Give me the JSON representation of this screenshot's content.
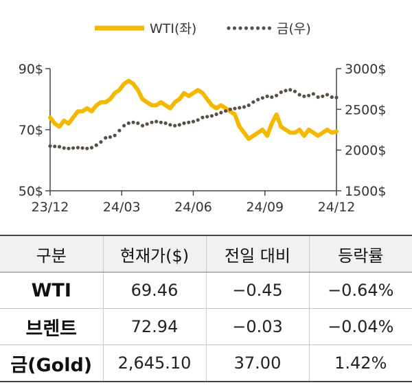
{
  "chart_data": {
    "type": "line",
    "x_ticks": [
      "23/12",
      "24/03",
      "24/06",
      "24/09",
      "24/12"
    ],
    "y_left": {
      "range": [
        50,
        90
      ],
      "ticks": [
        "90$",
        "70$",
        "50$"
      ]
    },
    "y_right": {
      "range": [
        1500,
        3000
      ],
      "ticks": [
        "3000$",
        "2500$",
        "2000$",
        "1500$"
      ]
    },
    "legend": {
      "position": "top"
    },
    "series": [
      {
        "name": "WTI(좌)",
        "axis": "left",
        "color": "#f5b800",
        "style": "solid",
        "values": [
          74,
          72,
          71,
          73,
          72,
          74,
          76,
          76,
          77,
          76,
          78,
          79,
          79,
          80,
          82,
          83,
          85,
          86,
          85,
          83,
          80,
          79,
          78,
          78,
          79,
          78,
          77,
          79,
          80,
          82,
          81,
          82,
          83,
          82,
          80,
          78,
          77,
          78,
          77,
          76,
          75,
          71,
          69,
          67,
          68,
          69,
          70,
          68,
          72,
          75,
          71,
          70,
          69,
          69,
          70,
          68,
          70,
          69,
          68,
          69,
          70,
          69,
          69.46
        ]
      },
      {
        "name": "금(우)",
        "axis": "right",
        "color": "#5a4f44",
        "style": "dotted",
        "values": [
          2050,
          2045,
          2040,
          2025,
          2020,
          2025,
          2030,
          2025,
          2020,
          2030,
          2060,
          2100,
          2150,
          2160,
          2180,
          2240,
          2300,
          2330,
          2340,
          2330,
          2300,
          2320,
          2340,
          2350,
          2340,
          2330,
          2310,
          2300,
          2310,
          2330,
          2340,
          2350,
          2370,
          2400,
          2410,
          2420,
          2440,
          2460,
          2480,
          2500,
          2510,
          2520,
          2530,
          2550,
          2590,
          2620,
          2640,
          2660,
          2650,
          2670,
          2710,
          2730,
          2740,
          2720,
          2680,
          2660,
          2670,
          2690,
          2650,
          2660,
          2680,
          2650,
          2645.1
        ]
      }
    ]
  },
  "table": {
    "headers": [
      "구분",
      "현재가($)",
      "전일 대비",
      "등락률"
    ],
    "rows": [
      [
        "WTI",
        "69.46",
        "−0.45",
        "−0.64%"
      ],
      [
        "브렌트",
        "72.94",
        "−0.03",
        "−0.04%"
      ],
      [
        "금(Gold)",
        "2,645.10",
        "37.00",
        "1.42%"
      ]
    ]
  }
}
